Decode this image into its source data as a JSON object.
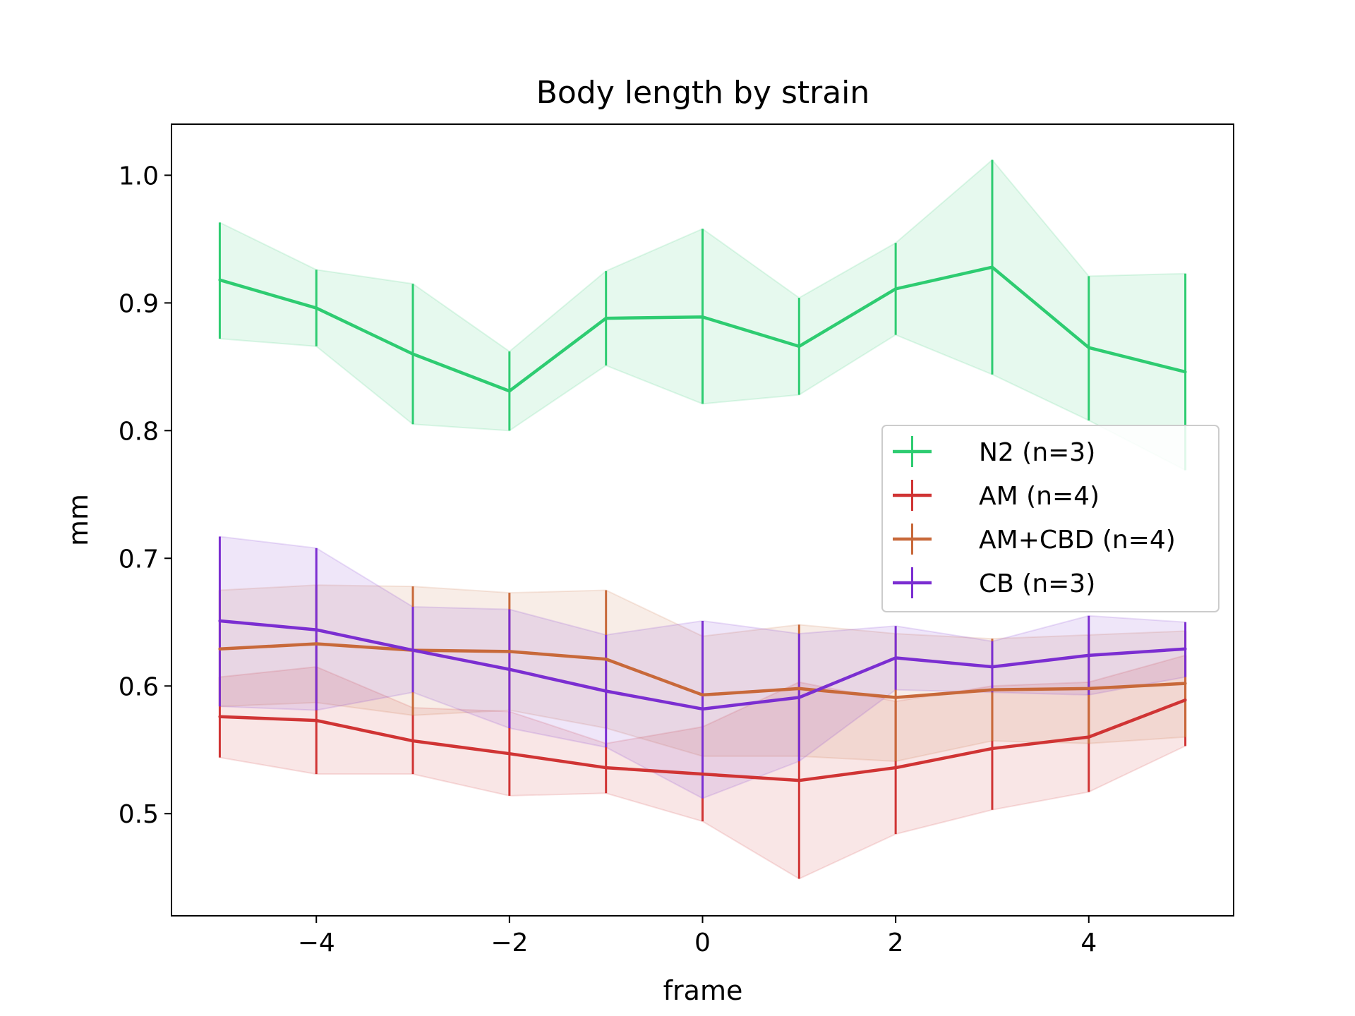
{
  "chart_data": {
    "type": "line",
    "title": "Body length by strain",
    "xlabel": "frame",
    "ylabel": "mm",
    "xlim": [
      -5.5,
      5.5
    ],
    "ylim": [
      0.42,
      1.04
    ],
    "x_ticks": [
      -4,
      -2,
      0,
      2,
      4
    ],
    "x_tick_labels": [
      "−4",
      "−2",
      "0",
      "2",
      "4"
    ],
    "y_ticks": [
      0.5,
      0.6,
      0.7,
      0.8,
      0.9,
      1.0
    ],
    "y_tick_labels": [
      "0.5",
      "0.6",
      "0.7",
      "0.8",
      "0.9",
      "1.0"
    ],
    "grid": false,
    "legend_position": "center-right",
    "x": [
      -5,
      -4,
      -3,
      -2,
      -1,
      0,
      1,
      2,
      3,
      4,
      5
    ],
    "series": [
      {
        "name": "N2 (n=3)",
        "color": "#2ecc71",
        "values": [
          0.918,
          0.896,
          0.86,
          0.831,
          0.888,
          0.889,
          0.866,
          0.911,
          0.928,
          0.865,
          0.846
        ],
        "lower": [
          0.872,
          0.866,
          0.805,
          0.8,
          0.851,
          0.821,
          0.828,
          0.875,
          0.844,
          0.808,
          0.769
        ],
        "upper": [
          0.963,
          0.926,
          0.915,
          0.862,
          0.925,
          0.958,
          0.904,
          0.947,
          1.012,
          0.921,
          0.923
        ]
      },
      {
        "name": "AM (n=4)",
        "color": "#d03434",
        "values": [
          0.576,
          0.573,
          0.557,
          0.547,
          0.536,
          0.531,
          0.526,
          0.536,
          0.551,
          0.56,
          0.589
        ],
        "lower": [
          0.544,
          0.531,
          0.531,
          0.514,
          0.516,
          0.494,
          0.449,
          0.484,
          0.503,
          0.517,
          0.553
        ],
        "upper": [
          0.607,
          0.615,
          0.583,
          0.58,
          0.555,
          0.568,
          0.603,
          0.588,
          0.6,
          0.603,
          0.624
        ]
      },
      {
        "name": "AM+CBD (n=4)",
        "color": "#c8693a",
        "values": [
          0.629,
          0.633,
          0.628,
          0.627,
          0.621,
          0.593,
          0.598,
          0.591,
          0.597,
          0.598,
          0.602
        ],
        "lower": [
          0.584,
          0.587,
          0.577,
          0.581,
          0.567,
          0.545,
          0.545,
          0.541,
          0.557,
          0.555,
          0.56
        ],
        "upper": [
          0.675,
          0.679,
          0.678,
          0.673,
          0.675,
          0.639,
          0.648,
          0.641,
          0.637,
          0.64,
          0.643
        ]
      },
      {
        "name": "CB (n=3)",
        "color": "#7b2ed1",
        "values": [
          0.651,
          0.644,
          0.628,
          0.613,
          0.596,
          0.582,
          0.591,
          0.622,
          0.615,
          0.624,
          0.629
        ],
        "lower": [
          0.584,
          0.581,
          0.595,
          0.567,
          0.552,
          0.512,
          0.541,
          0.597,
          0.595,
          0.593,
          0.607
        ],
        "upper": [
          0.717,
          0.708,
          0.662,
          0.66,
          0.64,
          0.651,
          0.641,
          0.647,
          0.635,
          0.655,
          0.65
        ]
      }
    ]
  }
}
